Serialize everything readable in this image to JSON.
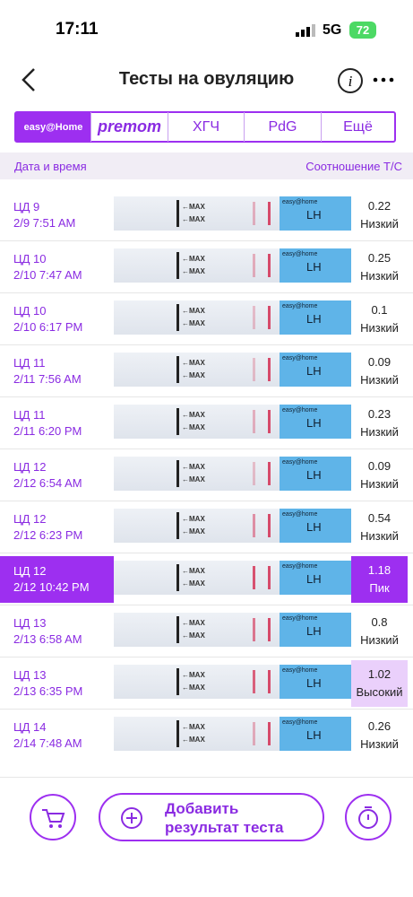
{
  "status": {
    "time": "17:11",
    "network": "5G",
    "battery": "72"
  },
  "header": {
    "title": "Тесты на овуляцию"
  },
  "tabs": [
    "easy@Home",
    "premom",
    "ХГЧ",
    "PdG",
    "Ещё"
  ],
  "columns": [
    "Дата и время",
    "Соотношение Т/С"
  ],
  "strip": {
    "marker": "←MAX",
    "brand": "easy@home",
    "lh": "LH"
  },
  "rows": [
    {
      "day": "ЦД 9",
      "datetime": "2/9 7:51 AM",
      "ratio": 0.22,
      "level": "Низкий"
    },
    {
      "day": "ЦД 10",
      "datetime": "2/10 7:47 AM",
      "ratio": 0.25,
      "level": "Низкий"
    },
    {
      "day": "ЦД 10",
      "datetime": "2/10 6:17 PM",
      "ratio": 0.1,
      "level": "Низкий"
    },
    {
      "day": "ЦД 11",
      "datetime": "2/11 7:56 AM",
      "ratio": 0.09,
      "level": "Низкий"
    },
    {
      "day": "ЦД 11",
      "datetime": "2/11 6:20 PM",
      "ratio": 0.23,
      "level": "Низкий"
    },
    {
      "day": "ЦД 12",
      "datetime": "2/12 6:54 AM",
      "ratio": 0.09,
      "level": "Низкий"
    },
    {
      "day": "ЦД 12",
      "datetime": "2/12 6:23 PM",
      "ratio": 0.54,
      "level": "Низкий"
    },
    {
      "day": "ЦД 12",
      "datetime": "2/12 10:42 PM",
      "ratio": 1.18,
      "level": "Пик",
      "background": "#9d2ff0"
    },
    {
      "day": "ЦД 13",
      "datetime": "2/13 6:58 AM",
      "ratio": 0.8,
      "level": "Низкий"
    },
    {
      "day": "ЦД 13",
      "datetime": "2/13 6:35 PM",
      "ratio": 1.02,
      "level": "Высокий",
      "background": "#ead0fb"
    },
    {
      "day": "ЦД 14",
      "datetime": "2/14 7:48 AM",
      "ratio": 0.26,
      "level": "Низкий"
    }
  ],
  "footer": {
    "add_button": "Добавить результат теста"
  }
}
